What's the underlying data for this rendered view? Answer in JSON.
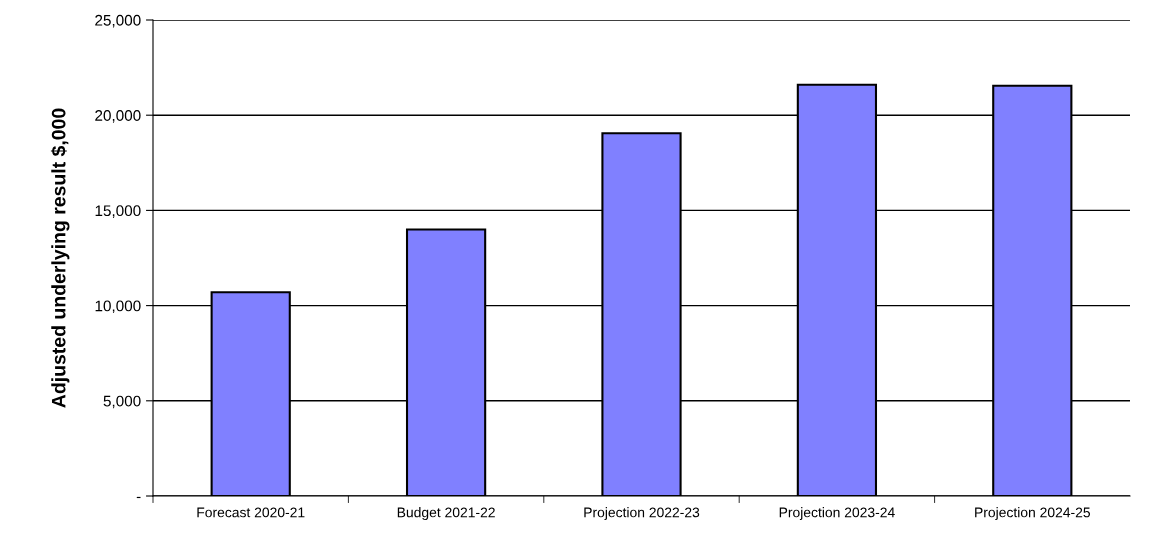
{
  "chart_data": {
    "type": "bar",
    "ylabel": "Adjusted underlying result $,000",
    "categories": [
      "Forecast 2020-21",
      "Budget 2021-22",
      "Projection 2022-23",
      "Projection 2023-24",
      "Projection 2024-25"
    ],
    "values": [
      10700,
      14000,
      19050,
      21600,
      21550
    ],
    "color": "#8080ff",
    "ylim": [
      0,
      25000
    ],
    "yticks": [
      {
        "value": 0,
        "label": "-"
      },
      {
        "value": 5000,
        "label": "5,000"
      },
      {
        "value": 10000,
        "label": "10,000"
      },
      {
        "value": 15000,
        "label": "15,000"
      },
      {
        "value": 20000,
        "label": "20,000"
      },
      {
        "value": 25000,
        "label": "25,000"
      }
    ],
    "grid": "y"
  }
}
